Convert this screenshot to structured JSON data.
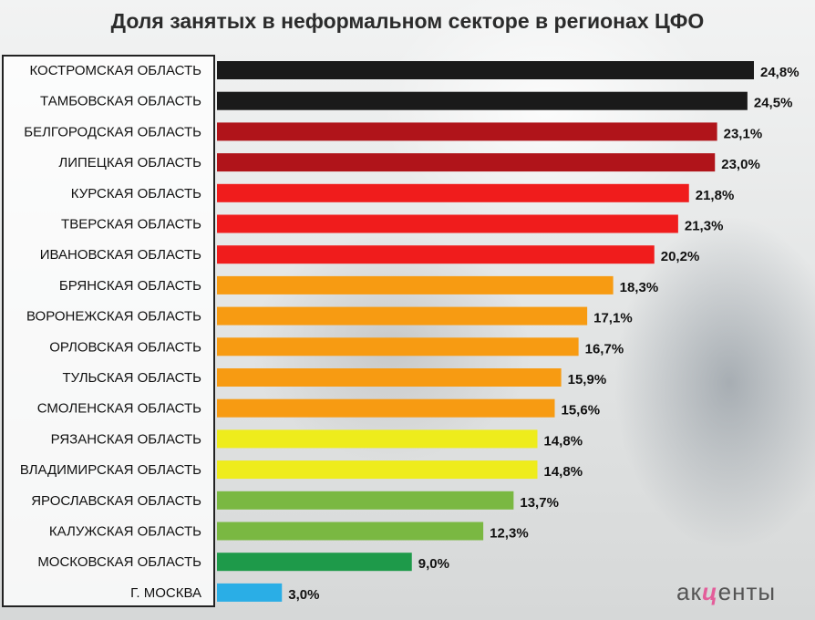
{
  "chart_data": {
    "type": "bar",
    "orientation": "horizontal",
    "title": "Доля занятых в неформальном секторе в регионах ЦФО",
    "categories": [
      "КОСТРОМСКАЯ ОБЛАСТЬ",
      "ТАМБОВСКАЯ ОБЛАСТЬ",
      "БЕЛГОРОДСКАЯ ОБЛАСТЬ",
      "ЛИПЕЦКАЯ ОБЛАСТЬ",
      "КУРСКАЯ ОБЛАСТЬ",
      "ТВЕРСКАЯ ОБЛАСТЬ",
      "ИВАНОВСКАЯ ОБЛАСТЬ",
      "БРЯНСКАЯ ОБЛАСТЬ",
      "ВОРОНЕЖСКАЯ ОБЛАСТЬ",
      "ОРЛОВСКАЯ ОБЛАСТЬ",
      "ТУЛЬСКАЯ ОБЛАСТЬ",
      "СМОЛЕНСКАЯ ОБЛАСТЬ",
      "РЯЗАНСКАЯ ОБЛАСТЬ",
      "ВЛАДИМИРСКАЯ ОБЛАСТЬ",
      "ЯРОСЛАВСКАЯ ОБЛАСТЬ",
      "КАЛУЖСКАЯ ОБЛАСТЬ",
      "МОСКОВСКАЯ ОБЛАСТЬ",
      "Г. МОСКВА"
    ],
    "values": [
      24.8,
      24.5,
      23.1,
      23.0,
      21.8,
      21.3,
      20.2,
      18.3,
      17.1,
      16.7,
      15.9,
      15.6,
      14.8,
      14.8,
      13.7,
      12.3,
      9.0,
      3.0
    ],
    "value_labels": [
      "24,8%",
      "24,5%",
      "23,1%",
      "23,0%",
      "21,8%",
      "21,3%",
      "20,2%",
      "18,3%",
      "17,1%",
      "16,7%",
      "15,9%",
      "15,6%",
      "14,8%",
      "14,8%",
      "13,7%",
      "12,3%",
      "9,0%",
      "3,0%"
    ],
    "bar_colors": [
      "#1a1a1a",
      "#1a1a1a",
      "#b0141a",
      "#b0141a",
      "#f01c1c",
      "#f01c1c",
      "#f01c1c",
      "#f79b12",
      "#f79b12",
      "#f79b12",
      "#f79b12",
      "#f79b12",
      "#eeec1c",
      "#eeec1c",
      "#7ab842",
      "#7ab842",
      "#1e9a4a",
      "#2aaee6"
    ],
    "xlim": [
      0,
      24.8
    ],
    "grid": false,
    "legend": "none"
  },
  "brand": {
    "left": "ак",
    "middle": "ц",
    "right": "енты"
  }
}
